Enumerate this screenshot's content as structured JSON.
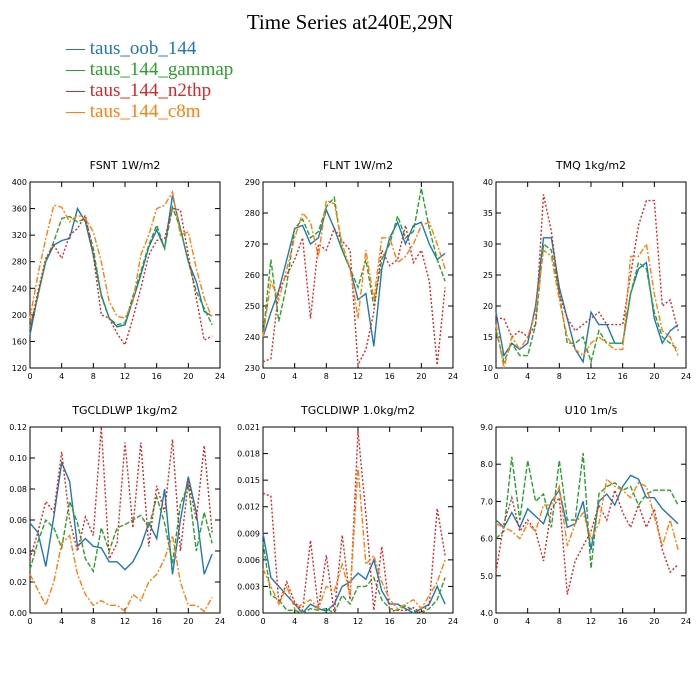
{
  "title": "Time Series at240E,29N",
  "legend": [
    {
      "name": "taus_oob_144",
      "color": "#1f77b4"
    },
    {
      "name": "taus_144_gammap",
      "color": "#2ca02c"
    },
    {
      "name": "taus_144_n2thp",
      "color": "#d62728"
    },
    {
      "name": "taus_144_c8m",
      "color": "#ff7f0e"
    }
  ],
  "chart_data": [
    {
      "type": "line",
      "title": "FSNT  1W/m2",
      "x": [
        0,
        1,
        2,
        3,
        4,
        5,
        6,
        7,
        8,
        9,
        10,
        11,
        12,
        13,
        14,
        15,
        16,
        17,
        18,
        19,
        20,
        21,
        22,
        23
      ],
      "xlim": [
        0,
        24
      ],
      "xticks": [
        0,
        4,
        8,
        12,
        16,
        20,
        24
      ],
      "ylim": [
        120,
        400
      ],
      "yticks": [
        "120",
        "160",
        "200",
        "240",
        "280",
        "320",
        "360",
        "400"
      ],
      "series": [
        {
          "name": "taus_oob_144",
          "color": "#1f77b4",
          "dash": "solid",
          "values": [
            170,
            230,
            280,
            305,
            312,
            315,
            360,
            340,
            290,
            230,
            195,
            182,
            185,
            222,
            260,
            302,
            328,
            300,
            380,
            330,
            280,
            250,
            205,
            198
          ]
        },
        {
          "name": "taus_144_gammap",
          "color": "#2ca02c",
          "dash": "dash",
          "values": [
            182,
            228,
            282,
            310,
            345,
            348,
            340,
            345,
            300,
            228,
            195,
            185,
            188,
            228,
            265,
            305,
            335,
            300,
            362,
            330,
            280,
            235,
            210,
            185
          ]
        },
        {
          "name": "taus_144_n2thp",
          "color": "#d62728",
          "dash": "dot",
          "values": [
            178,
            235,
            285,
            305,
            285,
            320,
            330,
            350,
            290,
            200,
            195,
            172,
            155,
            195,
            240,
            290,
            312,
            315,
            360,
            358,
            290,
            225,
            162,
            168
          ]
        },
        {
          "name": "taus_144_c8m",
          "color": "#ff7f0e",
          "dash": "dashdot",
          "values": [
            195,
            260,
            315,
            365,
            362,
            340,
            350,
            345,
            325,
            280,
            220,
            198,
            195,
            220,
            290,
            320,
            360,
            365,
            385,
            320,
            325,
            270,
            225,
            195
          ]
        }
      ]
    },
    {
      "type": "line",
      "title": "FLNT  1W/m2",
      "x": [
        0,
        1,
        2,
        3,
        4,
        5,
        6,
        7,
        8,
        9,
        10,
        11,
        12,
        13,
        14,
        15,
        16,
        17,
        18,
        19,
        20,
        21,
        22,
        23
      ],
      "xlim": [
        0,
        24
      ],
      "xticks": [
        0,
        4,
        8,
        12,
        16,
        20,
        24
      ],
      "ylim": [
        230,
        290
      ],
      "yticks": [
        "230",
        "240",
        "250",
        "260",
        "270",
        "280",
        "290"
      ],
      "series": [
        {
          "name": "taus_oob_144",
          "color": "#1f77b4",
          "dash": "solid",
          "values": [
            240,
            248,
            255,
            265,
            275,
            276,
            270,
            272,
            281,
            275,
            268,
            262,
            252,
            254,
            237,
            262,
            272,
            277,
            270,
            276,
            277,
            270,
            265,
            267
          ]
        },
        {
          "name": "taus_144_gammap",
          "color": "#2ca02c",
          "dash": "dash",
          "values": [
            240,
            265,
            245,
            257,
            275,
            278,
            272,
            274,
            282,
            285,
            268,
            262,
            256,
            265,
            250,
            265,
            270,
            279,
            272,
            274,
            288,
            275,
            265,
            258
          ]
        },
        {
          "name": "taus_144_n2thp",
          "color": "#d62728",
          "dash": "dot",
          "values": [
            232,
            233,
            255,
            260,
            265,
            272,
            246,
            270,
            268,
            275,
            271,
            268,
            231,
            236,
            248,
            268,
            263,
            265,
            276,
            264,
            268,
            258,
            231,
            256
          ]
        },
        {
          "name": "taus_144_c8m",
          "color": "#ff7f0e",
          "dash": "dashdot",
          "values": [
            240,
            258,
            252,
            262,
            272,
            280,
            277,
            266,
            284,
            283,
            270,
            262,
            246,
            268,
            252,
            272,
            272,
            264,
            266,
            270,
            276,
            277,
            270,
            262
          ]
        }
      ]
    },
    {
      "type": "line",
      "title": "TMQ  1kg/m2",
      "x": [
        0,
        1,
        2,
        3,
        4,
        5,
        6,
        7,
        8,
        9,
        10,
        11,
        12,
        13,
        14,
        15,
        16,
        17,
        18,
        19,
        20,
        21,
        22,
        23
      ],
      "xlim": [
        0,
        24
      ],
      "xticks": [
        0,
        4,
        8,
        12,
        16,
        20,
        24
      ],
      "ylim": [
        10,
        40
      ],
      "yticks": [
        "10",
        "15",
        "20",
        "25",
        "30",
        "35",
        "40"
      ],
      "series": [
        {
          "name": "taus_oob_144",
          "color": "#1f77b4",
          "dash": "solid",
          "values": [
            19,
            12,
            14,
            13,
            14,
            20,
            31,
            31,
            23,
            18,
            13,
            11,
            19,
            17,
            17,
            14,
            14,
            22,
            26,
            27,
            18,
            14,
            16,
            17
          ]
        },
        {
          "name": "taus_144_gammap",
          "color": "#2ca02c",
          "dash": "dash",
          "values": [
            16,
            11,
            14,
            12,
            12,
            17,
            30,
            29,
            22,
            14,
            14,
            15,
            11,
            16,
            14,
            14,
            14,
            22,
            27,
            26,
            19,
            15,
            14,
            13
          ]
        },
        {
          "name": "taus_144_n2thp",
          "color": "#d62728",
          "dash": "dot",
          "values": [
            18,
            18,
            15,
            16,
            15,
            17,
            38,
            32,
            22,
            18,
            16,
            17,
            18,
            19,
            17,
            17,
            17,
            25,
            33,
            37,
            37,
            20,
            21,
            16
          ]
        },
        {
          "name": "taus_144_c8m",
          "color": "#ff7f0e",
          "dash": "dashdot",
          "values": [
            17,
            10,
            15,
            13,
            15,
            19,
            29,
            28,
            21,
            15,
            13,
            12,
            14,
            15,
            14,
            13,
            13,
            28,
            28,
            30,
            22,
            16,
            15,
            12
          ]
        }
      ]
    },
    {
      "type": "line",
      "title": "TGCLDLWP  1kg/m2",
      "x": [
        0,
        1,
        2,
        3,
        4,
        5,
        6,
        7,
        8,
        9,
        10,
        11,
        12,
        13,
        14,
        15,
        16,
        17,
        18,
        19,
        20,
        21,
        22,
        23
      ],
      "xlim": [
        0,
        24
      ],
      "xticks": [
        0,
        4,
        8,
        12,
        16,
        20,
        24
      ],
      "ylim": [
        0,
        0.12
      ],
      "yticks": [
        "0.00",
        "0.02",
        "0.04",
        "0.06",
        "0.08",
        "0.10",
        "0.12"
      ],
      "series": [
        {
          "name": "taus_oob_144",
          "color": "#1f77b4",
          "dash": "solid",
          "values": [
            0.058,
            0.052,
            0.03,
            0.062,
            0.097,
            0.085,
            0.043,
            0.048,
            0.043,
            0.042,
            0.033,
            0.033,
            0.028,
            0.033,
            0.043,
            0.058,
            0.048,
            0.08,
            0.025,
            0.06,
            0.088,
            0.065,
            0.025,
            0.038
          ]
        },
        {
          "name": "taus_144_gammap",
          "color": "#2ca02c",
          "dash": "dash",
          "values": [
            0.028,
            0.046,
            0.06,
            0.055,
            0.042,
            0.072,
            0.058,
            0.035,
            0.027,
            0.055,
            0.04,
            0.055,
            0.057,
            0.06,
            0.063,
            0.055,
            0.075,
            0.058,
            0.032,
            0.07,
            0.083,
            0.04,
            0.065,
            0.045
          ]
        },
        {
          "name": "taus_144_n2thp",
          "color": "#d62728",
          "dash": "dot",
          "values": [
            0.035,
            0.052,
            0.072,
            0.065,
            0.104,
            0.06,
            0.04,
            0.062,
            0.05,
            0.12,
            0.035,
            0.045,
            0.11,
            0.055,
            0.11,
            0.043,
            0.082,
            0.065,
            0.112,
            0.04,
            0.085,
            0.06,
            0.108,
            0.052
          ]
        },
        {
          "name": "taus_144_c8m",
          "color": "#ff7f0e",
          "dash": "dashdot",
          "values": [
            0.025,
            0.015,
            0.005,
            0.02,
            0.045,
            0.05,
            0.025,
            0.012,
            0.005,
            0.008,
            0.005,
            0.005,
            0.001,
            0.012,
            0.008,
            0.02,
            0.025,
            0.035,
            0.05,
            0.02,
            0.005,
            0.005,
            0.001,
            0.01
          ]
        }
      ]
    },
    {
      "type": "line",
      "title": "TGCLDIWP  1.0kg/m2",
      "x": [
        0,
        1,
        2,
        3,
        4,
        5,
        6,
        7,
        8,
        9,
        10,
        11,
        12,
        13,
        14,
        15,
        16,
        17,
        18,
        19,
        20,
        21,
        22,
        23
      ],
      "xlim": [
        0,
        24
      ],
      "xticks": [
        0,
        4,
        8,
        12,
        16,
        20,
        24
      ],
      "ylim": [
        0,
        0.021
      ],
      "yticks": [
        "0.000",
        "0.003",
        "0.006",
        "0.009",
        "0.012",
        "0.015",
        "0.018",
        "0.021"
      ],
      "series": [
        {
          "name": "taus_oob_144",
          "color": "#1f77b4",
          "dash": "solid",
          "values": [
            0.009,
            0.004,
            0.003,
            0.002,
            0.001,
            0.0,
            0.001,
            0.0005,
            0.0002,
            0.001,
            0.003,
            0.0035,
            0.0045,
            0.0038,
            0.006,
            0.0025,
            0.001,
            0.001,
            0.0005,
            0.0,
            0.0005,
            0.001,
            0.003,
            0.001
          ]
        },
        {
          "name": "taus_144_gammap",
          "color": "#2ca02c",
          "dash": "dash",
          "values": [
            0.008,
            0.002,
            0.0015,
            0.0003,
            0.0003,
            0.0,
            0.0005,
            0.0003,
            0.0005,
            0.0,
            0.002,
            0.001,
            0.003,
            0.003,
            0.004,
            0.0015,
            0.0005,
            0.0003,
            0.0008,
            0.0003,
            0.0,
            0.0005,
            0.0015,
            0.004
          ]
        },
        {
          "name": "taus_144_n2thp",
          "color": "#d62728",
          "dash": "dot",
          "values": [
            0.0135,
            0.0132,
            0.001,
            0.0035,
            0.0012,
            0.0003,
            0.0082,
            0.0005,
            0.0065,
            0.0,
            0.0088,
            0.0015,
            0.0205,
            0.0112,
            0.0003,
            0.0075,
            0.0002,
            0.0003,
            0.0003,
            0.0006,
            0.0,
            0.001,
            0.0118,
            0.0065
          ]
        },
        {
          "name": "taus_144_c8m",
          "color": "#ff7f0e",
          "dash": "dashdot",
          "values": [
            0.005,
            0.003,
            0.001,
            0.003,
            0.0005,
            0.001,
            0.0015,
            0.0005,
            0.003,
            0.0025,
            0.0055,
            0.002,
            0.0165,
            0.0055,
            0.0065,
            0.0035,
            0.0015,
            0.0005,
            0.001,
            0.0015,
            0.0005,
            0.002,
            0.0035,
            0.006
          ]
        }
      ]
    },
    {
      "type": "line",
      "title": "U10  1m/s",
      "x": [
        0,
        1,
        2,
        3,
        4,
        5,
        6,
        7,
        8,
        9,
        10,
        11,
        12,
        13,
        14,
        15,
        16,
        17,
        18,
        19,
        20,
        21,
        22,
        23
      ],
      "xlim": [
        0,
        24
      ],
      "xticks": [
        0,
        4,
        8,
        12,
        16,
        20,
        24
      ],
      "ylim": [
        4,
        9
      ],
      "yticks": [
        "4.0",
        "5.0",
        "6.0",
        "7.0",
        "8.0",
        "9.0"
      ],
      "series": [
        {
          "name": "taus_oob_144",
          "color": "#1f77b4",
          "dash": "solid",
          "values": [
            6.5,
            6.3,
            6.7,
            6.3,
            6.8,
            6.6,
            6.4,
            7.0,
            7.3,
            6.3,
            6.4,
            7.0,
            5.7,
            7.0,
            7.2,
            6.9,
            7.4,
            7.7,
            7.6,
            7.1,
            7.1,
            6.8,
            6.6,
            6.4
          ]
        },
        {
          "name": "taus_144_gammap",
          "color": "#2ca02c",
          "dash": "dash",
          "values": [
            6.0,
            6.2,
            8.2,
            6.5,
            8.1,
            7.0,
            7.2,
            6.3,
            8.1,
            6.5,
            6.5,
            8.3,
            5.2,
            7.2,
            7.4,
            7.5,
            7.3,
            7.4,
            6.9,
            7.2,
            7.3,
            7.3,
            7.3,
            6.9
          ]
        },
        {
          "name": "taus_144_n2thp",
          "color": "#d62728",
          "dash": "dot",
          "values": [
            5.1,
            6.4,
            7.1,
            6.2,
            6.5,
            6.2,
            5.4,
            6.8,
            7.1,
            4.5,
            5.4,
            5.8,
            6.2,
            6.9,
            6.5,
            7.3,
            6.7,
            6.3,
            6.9,
            6.3,
            6.8,
            5.7,
            5.1,
            5.3
          ]
        },
        {
          "name": "taus_144_c8m",
          "color": "#ff7f0e",
          "dash": "dashdot",
          "values": [
            6.4,
            6.3,
            6.2,
            6.0,
            6.4,
            6.2,
            6.9,
            6.9,
            7.4,
            5.8,
            6.4,
            6.7,
            6.0,
            6.4,
            7.6,
            7.4,
            7.3,
            7.1,
            7.5,
            7.4,
            6.6,
            5.8,
            6.5,
            5.7
          ]
        }
      ]
    }
  ]
}
